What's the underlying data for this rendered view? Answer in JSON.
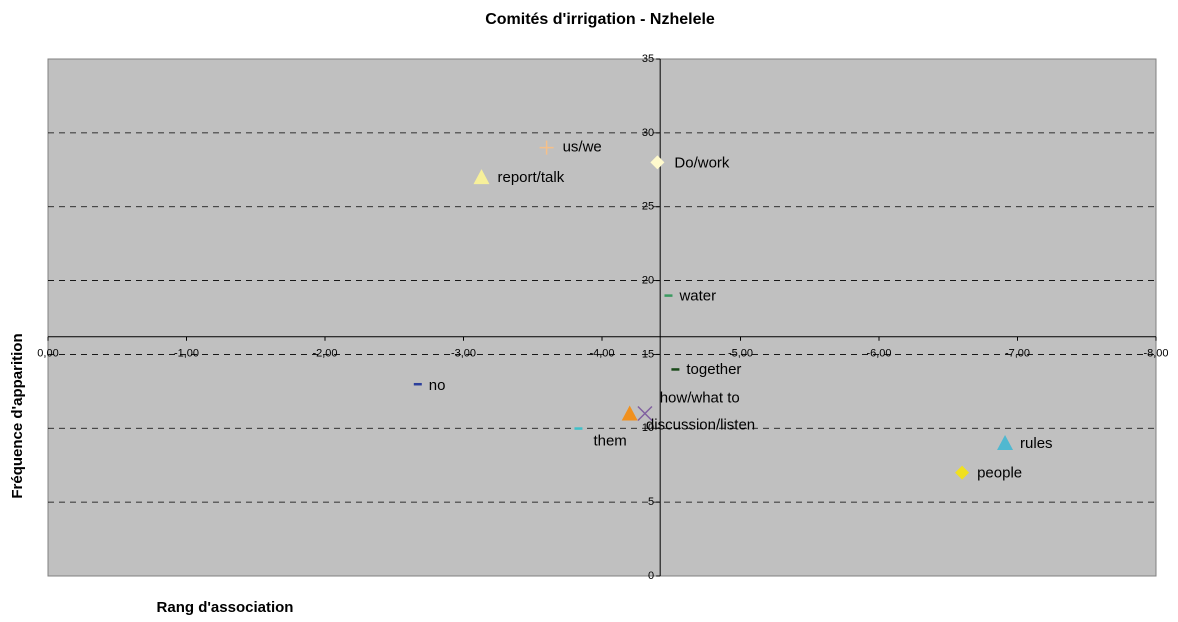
{
  "chart_data": {
    "type": "scatter",
    "title": "Comités d'irrigation - Nzhelele",
    "xlabel": "Rang d'association",
    "ylabel": "Fréquence d'apparition",
    "xlim": [
      0,
      -8
    ],
    "ylim": [
      0,
      35
    ],
    "xticks": [
      {
        "value": 0,
        "label": "0,00"
      },
      {
        "value": -1,
        "label": "-1,00"
      },
      {
        "value": -2,
        "label": "-2,00"
      },
      {
        "value": -3,
        "label": "-3,00"
      },
      {
        "value": -4,
        "label": "-4,00"
      },
      {
        "value": -5,
        "label": "-5,00"
      },
      {
        "value": -6,
        "label": "-6,00"
      },
      {
        "value": -7,
        "label": "-7,00"
      },
      {
        "value": -8,
        "label": "-8,00"
      }
    ],
    "yticks": [
      0,
      5,
      10,
      15,
      20,
      25,
      30,
      35
    ],
    "x_axis_crosses_y": 16.2,
    "y_axis_crosses_x": -4.42,
    "grid": true,
    "series": [
      {
        "name": "us/we",
        "color": "#f5c08a",
        "marker": "plus",
        "x": [
          -3.6
        ],
        "values": [
          29
        ]
      },
      {
        "name": "Do/work",
        "color": "#fffacd",
        "marker": "diamond",
        "x": [
          -4.4
        ],
        "values": [
          28
        ]
      },
      {
        "name": "report/talk",
        "color": "#f7f09a",
        "marker": "triangle",
        "x": [
          -3.13
        ],
        "values": [
          27
        ]
      },
      {
        "name": "water",
        "color": "#3a9a60",
        "marker": "dash",
        "x": [
          -4.48
        ],
        "values": [
          19
        ]
      },
      {
        "name": "no",
        "color": "#2c3f9c",
        "marker": "dash",
        "x": [
          -2.67
        ],
        "values": [
          13
        ]
      },
      {
        "name": "together",
        "color": "#1a4a1a",
        "marker": "dash",
        "x": [
          -4.53
        ],
        "values": [
          14
        ]
      },
      {
        "name": "how/what to",
        "color": "#f0901e",
        "marker": "triangle",
        "x": [
          -4.2
        ],
        "values": [
          11
        ]
      },
      {
        "name": "discussion/listen",
        "color": "#8060a0",
        "marker": "cross",
        "x": [
          -4.31
        ],
        "values": [
          11
        ]
      },
      {
        "name": "them",
        "color": "#40c0c8",
        "marker": "dash",
        "x": [
          -3.83
        ],
        "values": [
          10
        ]
      },
      {
        "name": "rules",
        "color": "#50b8d0",
        "marker": "triangle",
        "x": [
          -6.91
        ],
        "values": [
          9
        ]
      },
      {
        "name": "people",
        "color": "#f0e020",
        "marker": "diamond",
        "x": [
          -6.6
        ],
        "values": [
          7
        ]
      }
    ]
  }
}
